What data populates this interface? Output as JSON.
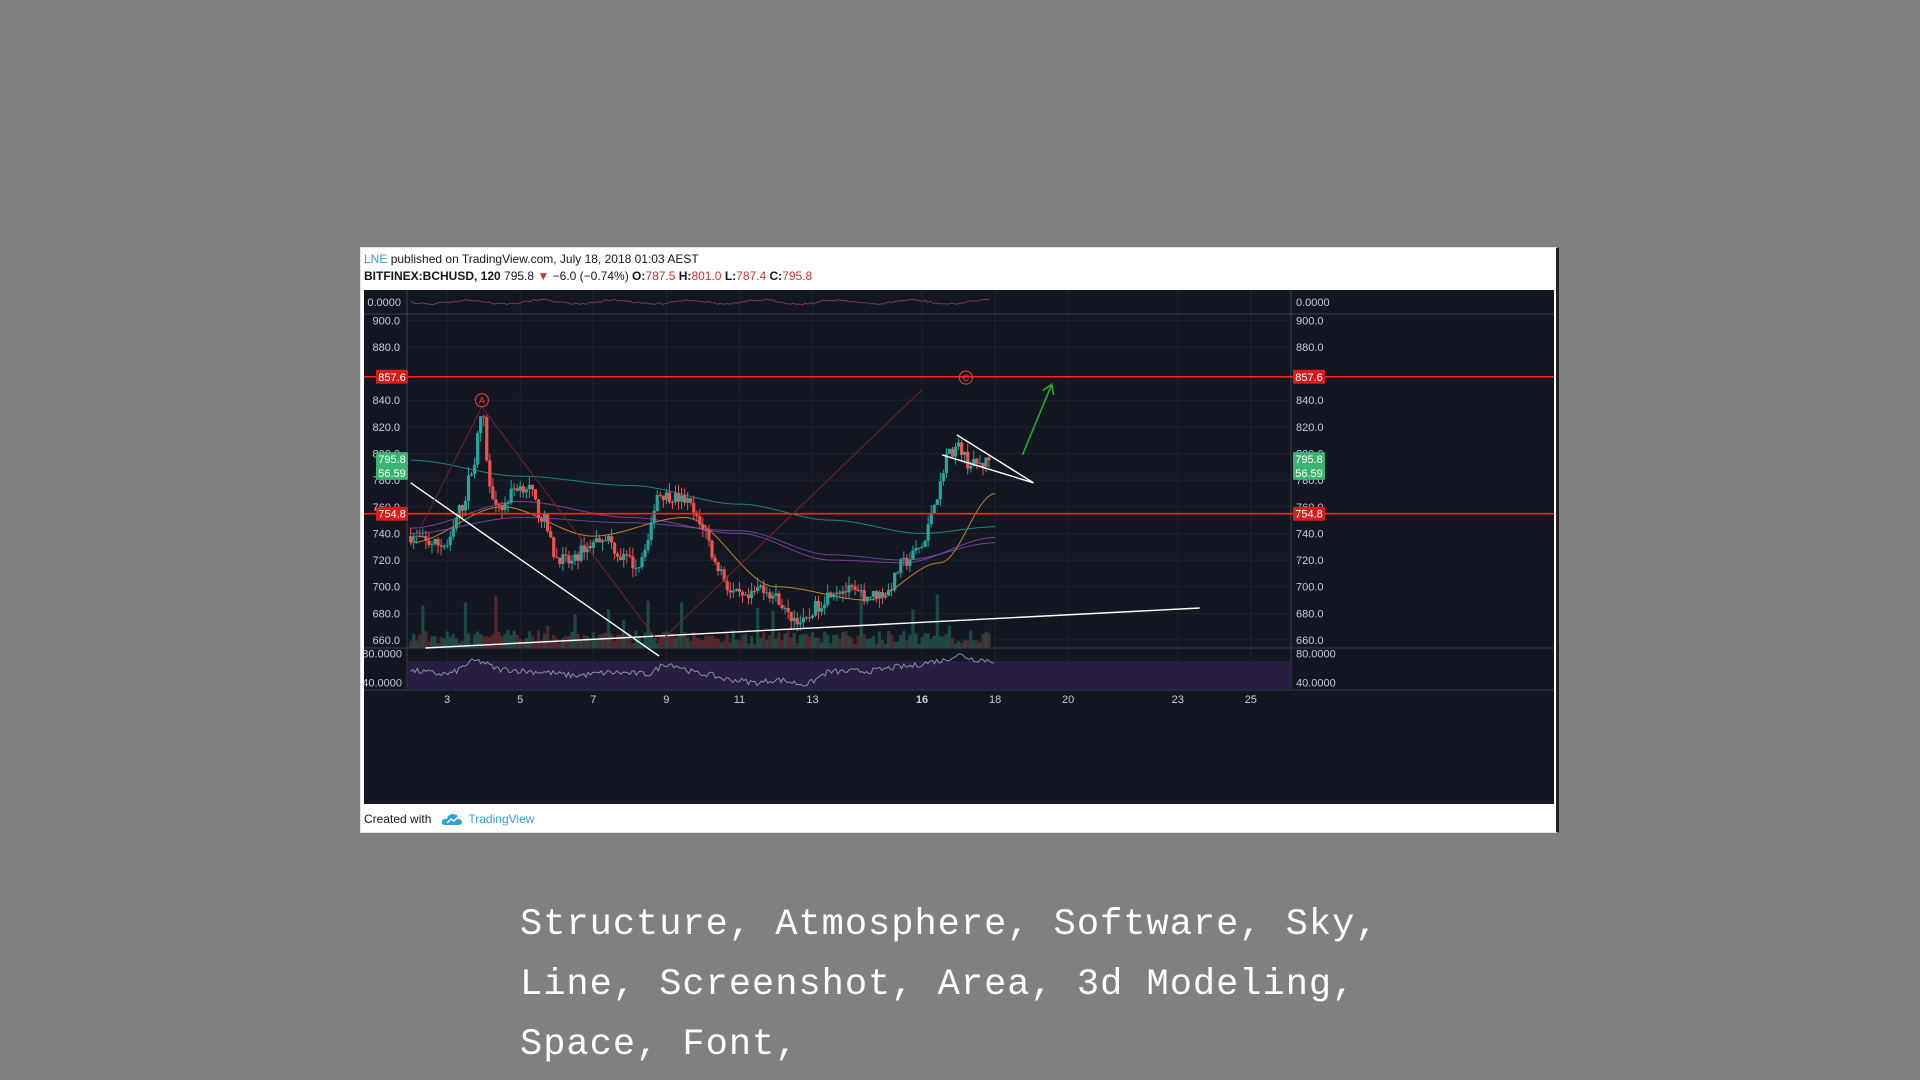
{
  "header": {
    "user": "LNE",
    "published_text": "published on TradingView.com, July 18, 2018 01:03 AEST",
    "symbol": "BITFINEX:BCHUSD, 120",
    "last": "795.8",
    "change": "−6.0 (−0.74%)",
    "o_label": "O:",
    "o_value": "787.5",
    "h_label": "H:",
    "h_value": "801.0",
    "l_label": "L:",
    "l_value": "787.4",
    "c_label": "C:",
    "c_value": "795.8"
  },
  "footer": {
    "created_with": "Created with",
    "brand": "TradingView"
  },
  "caption": "Structure, Atmosphere, Software, Sky, Line, Screenshot, Area, 3d Modeling, Space, Font,",
  "chart_data": {
    "type": "candlestick",
    "title": "",
    "x": {
      "tick_labels": [
        "3",
        "5",
        "7",
        "9",
        "11",
        "13",
        "16",
        "18",
        "20",
        "23",
        "25"
      ],
      "tick_days": [
        3,
        5,
        7,
        9,
        11,
        13,
        16,
        18,
        20,
        23,
        25
      ],
      "range_days": [
        1.9,
        26.1
      ]
    },
    "y": {
      "range": [
        654,
        904
      ],
      "ticks": [
        900,
        880,
        840,
        820,
        800,
        780,
        760,
        740,
        720,
        700,
        680,
        660
      ],
      "tick_labels": [
        "900.0",
        "880.0",
        "840.0",
        "820.0",
        "800.0",
        "780.0",
        "760.0",
        "740.0",
        "720.0",
        "700.0",
        "680.0",
        "660.0"
      ]
    },
    "price_path": [
      [
        2.0,
        738
      ],
      [
        2.5,
        733
      ],
      [
        3.0,
        731
      ],
      [
        3.4,
        760
      ],
      [
        3.7,
        790
      ],
      [
        3.95,
        830
      ],
      [
        4.2,
        770
      ],
      [
        4.5,
        760
      ],
      [
        4.9,
        775
      ],
      [
        5.2,
        775
      ],
      [
        5.6,
        752
      ],
      [
        6.0,
        722
      ],
      [
        6.4,
        718
      ],
      [
        6.8,
        730
      ],
      [
        7.3,
        738
      ],
      [
        7.8,
        722
      ],
      [
        8.2,
        716
      ],
      [
        8.5,
        735
      ],
      [
        8.75,
        770
      ],
      [
        9.1,
        768
      ],
      [
        9.5,
        765
      ],
      [
        10.0,
        745
      ],
      [
        10.4,
        715
      ],
      [
        10.8,
        695
      ],
      [
        11.2,
        690
      ],
      [
        11.6,
        700
      ],
      [
        12.0,
        692
      ],
      [
        12.4,
        677
      ],
      [
        12.8,
        673
      ],
      [
        13.1,
        685
      ],
      [
        13.6,
        698
      ],
      [
        14.0,
        697
      ],
      [
        14.4,
        693
      ],
      [
        15.0,
        695
      ],
      [
        15.5,
        718
      ],
      [
        16.0,
        730
      ],
      [
        16.4,
        768
      ],
      [
        16.7,
        800
      ],
      [
        17.0,
        805
      ],
      [
        17.3,
        792
      ],
      [
        17.6,
        792
      ],
      [
        17.9,
        795.8
      ]
    ],
    "rsi_path": [
      [
        2.0,
        56
      ],
      [
        3.0,
        52
      ],
      [
        3.8,
        70
      ],
      [
        4.5,
        58
      ],
      [
        5.5,
        55
      ],
      [
        6.5,
        50
      ],
      [
        7.5,
        54
      ],
      [
        8.5,
        52
      ],
      [
        9.0,
        66
      ],
      [
        10.0,
        52
      ],
      [
        10.8,
        44
      ],
      [
        11.5,
        40
      ],
      [
        12.0,
        44
      ],
      [
        12.8,
        38
      ],
      [
        13.5,
        55
      ],
      [
        14.5,
        56
      ],
      [
        15.5,
        62
      ],
      [
        16.5,
        70
      ],
      [
        17.0,
        78
      ],
      [
        17.5,
        72
      ],
      [
        18.0,
        70
      ]
    ],
    "moving_averages": [
      {
        "color": "#ffa726",
        "points": [
          [
            2.0,
            733
          ],
          [
            4.5,
            760
          ],
          [
            7.0,
            738
          ],
          [
            9.5,
            752
          ],
          [
            12.0,
            700
          ],
          [
            14.5,
            690
          ],
          [
            16.5,
            718
          ],
          [
            18.0,
            770
          ]
        ]
      },
      {
        "color": "#26a69a",
        "points": [
          [
            2.0,
            795
          ],
          [
            5.0,
            783
          ],
          [
            8.0,
            776
          ],
          [
            11.0,
            762
          ],
          [
            13.5,
            750
          ],
          [
            16.0,
            740
          ],
          [
            18.0,
            745
          ]
        ]
      },
      {
        "color": "#ab47bc",
        "points": [
          [
            2.0,
            744
          ],
          [
            5.0,
            764
          ],
          [
            8.0,
            752
          ],
          [
            11.0,
            740
          ],
          [
            13.5,
            720
          ],
          [
            15.5,
            718
          ],
          [
            18.0,
            737
          ]
        ]
      },
      {
        "color": "#7e57c2",
        "points": [
          [
            2.0,
            740
          ],
          [
            5.0,
            752
          ],
          [
            8.0,
            748
          ],
          [
            11.0,
            742
          ],
          [
            13.5,
            724
          ],
          [
            15.5,
            720
          ],
          [
            18.0,
            733
          ]
        ]
      }
    ],
    "horizontal_levels": [
      {
        "value": 857.6,
        "label": "857.6",
        "color": "#ff2020"
      },
      {
        "value": 754.8,
        "label": "754.8",
        "color": "#ff2020"
      }
    ],
    "price_tags": [
      {
        "value": 795.8,
        "label": "795.8",
        "color": "#3cb371"
      },
      {
        "value": 785.5,
        "label": "56.59",
        "color": "#3cb371"
      }
    ],
    "trend_lines": [
      {
        "color": "#ffffff",
        "points": [
          [
            2.0,
            778
          ],
          [
            8.8,
            648
          ]
        ]
      },
      {
        "color": "#ffffff",
        "points": [
          [
            2.4,
            654
          ],
          [
            23.6,
            684
          ]
        ]
      },
      {
        "color": "#ffffff",
        "points": [
          [
            16.55,
            799
          ],
          [
            19.05,
            778
          ]
        ]
      },
      {
        "color": "#ffffff",
        "points": [
          [
            16.95,
            814
          ],
          [
            19.05,
            778
          ]
        ]
      },
      {
        "color": "#7a1f2a",
        "points": [
          [
            2.0,
            730
          ],
          [
            3.95,
            835
          ],
          [
            8.8,
            658
          ],
          [
            16.0,
            848
          ]
        ]
      }
    ],
    "projection_arrow": {
      "color": "#1fb02a",
      "from": [
        18.75,
        799
      ],
      "to": [
        19.55,
        852
      ]
    },
    "wave_labels": [
      {
        "text": "A",
        "x": 3.95,
        "y": 840
      },
      {
        "text": "C",
        "x": 17.2,
        "y": 857
      }
    ],
    "upper_pane": {
      "label": "0.0000"
    },
    "lower_pane": {
      "tick_labels": [
        "80.0000",
        "40.0000"
      ],
      "ticks": [
        80,
        40
      ]
    }
  }
}
